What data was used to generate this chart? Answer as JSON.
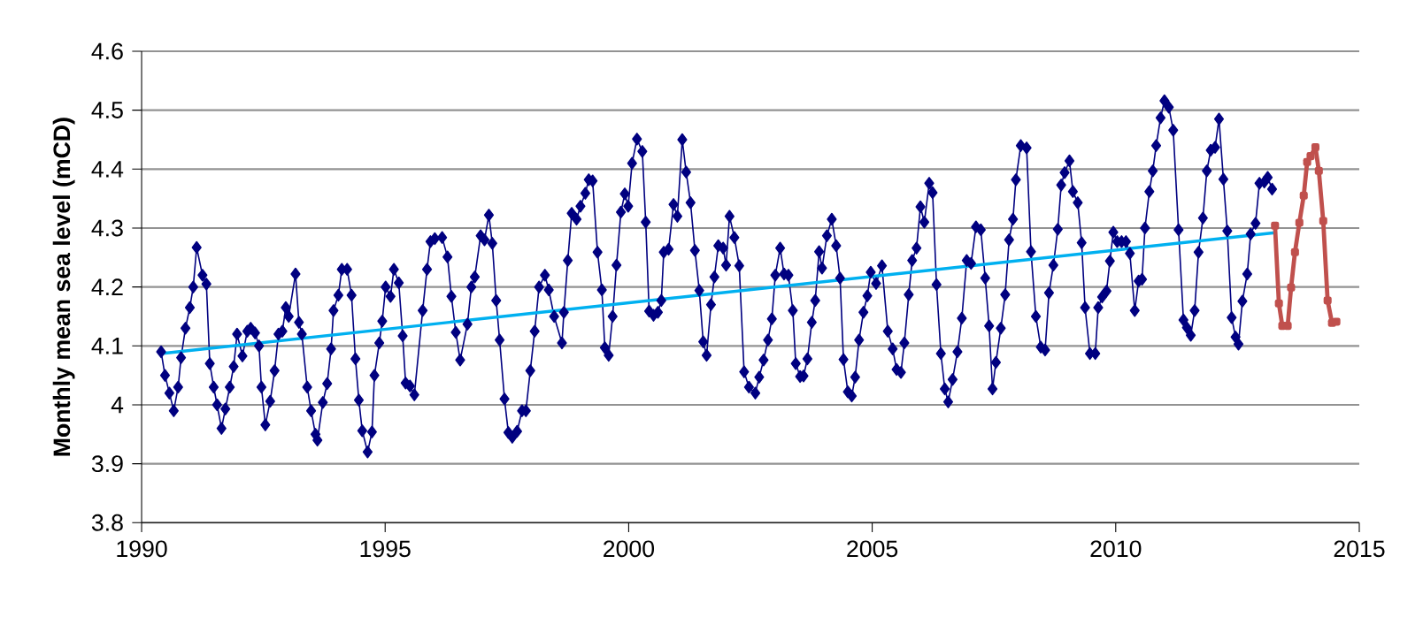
{
  "chart_data": {
    "type": "line",
    "ylabel": "Monthly mean sea level (mCD)",
    "xlim": [
      1990,
      2015
    ],
    "xticks": [
      1990,
      1995,
      2000,
      2005,
      2010,
      2015
    ],
    "ylim": [
      3.8,
      4.6
    ],
    "yticks": [
      3.8,
      3.9,
      4,
      4.1,
      4.2,
      4.3,
      4.4,
      4.5,
      4.6
    ],
    "grid": "y",
    "series": [
      {
        "color": "#000080",
        "marker": "diamond",
        "x": [
          1990.4,
          1990.48,
          1990.57,
          1990.66,
          1990.75,
          1990.81,
          1990.9,
          1990.99,
          1991.06,
          1991.13,
          1991.25,
          1991.33,
          1991.4,
          1991.48,
          1991.55,
          1991.64,
          1991.72,
          1991.81,
          1991.89,
          1991.96,
          1992.07,
          1992.17,
          1992.24,
          1992.33,
          1992.41,
          1992.46,
          1992.54,
          1992.64,
          1992.73,
          1992.81,
          1992.89,
          1992.96,
          1993.02,
          1993.16,
          1993.23,
          1993.29,
          1993.4,
          1993.48,
          1993.57,
          1993.61,
          1993.72,
          1993.81,
          1993.89,
          1993.94,
          1994.04,
          1994.11,
          1994.22,
          1994.31,
          1994.39,
          1994.46,
          1994.53,
          1994.64,
          1994.73,
          1994.78,
          1994.88,
          1994.94,
          1995.01,
          1995.11,
          1995.18,
          1995.28,
          1995.36,
          1995.42,
          1995.51,
          1995.6,
          1995.77,
          1995.86,
          1995.93,
          1996.02,
          1996.17,
          1996.28,
          1996.36,
          1996.45,
          1996.54,
          1996.69,
          1996.77,
          1996.84,
          1996.96,
          1997.04,
          1997.13,
          1997.2,
          1997.28,
          1997.35,
          1997.45,
          1997.53,
          1997.61,
          1997.71,
          1997.81,
          1997.89,
          1997.98,
          1998.07,
          1998.16,
          1998.28,
          1998.36,
          1998.47,
          1998.63,
          1998.67,
          1998.75,
          1998.83,
          1998.93,
          1999.01,
          1999.11,
          1999.18,
          1999.26,
          1999.36,
          1999.45,
          1999.51,
          1999.59,
          1999.67,
          1999.75,
          1999.84,
          1999.92,
          1999.99,
          2000.07,
          2000.17,
          2000.28,
          2000.35,
          2000.42,
          2000.51,
          2000.6,
          2000.67,
          2000.72,
          2000.82,
          2000.92,
          2001.0,
          2001.1,
          2001.18,
          2001.27,
          2001.36,
          2001.45,
          2001.53,
          2001.6,
          2001.69,
          2001.76,
          2001.84,
          2001.94,
          2002.0,
          2002.07,
          2002.17,
          2002.27,
          2002.37,
          2002.47,
          2002.6,
          2002.68,
          2002.77,
          2002.86,
          2002.94,
          2003.01,
          2003.11,
          2003.19,
          2003.28,
          2003.37,
          2003.43,
          2003.52,
          2003.59,
          2003.67,
          2003.76,
          2003.83,
          2003.91,
          2003.97,
          2004.07,
          2004.17,
          2004.26,
          2004.34,
          2004.41,
          2004.5,
          2004.58,
          2004.65,
          2004.73,
          2004.82,
          2004.9,
          2004.97,
          2005.08,
          2005.2,
          2005.32,
          2005.42,
          2005.5,
          2005.59,
          2005.66,
          2005.75,
          2005.82,
          2005.91,
          2005.99,
          2006.07,
          2006.17,
          2006.24,
          2006.32,
          2006.41,
          2006.49,
          2006.56,
          2006.65,
          2006.75,
          2006.84,
          2006.94,
          2007.03,
          2007.13,
          2007.23,
          2007.32,
          2007.4,
          2007.47,
          2007.54,
          2007.64,
          2007.73,
          2007.81,
          2007.89,
          2007.95,
          2008.05,
          2008.17,
          2008.26,
          2008.36,
          2008.46,
          2008.55,
          2008.63,
          2008.72,
          2008.81,
          2008.88,
          2008.95,
          2009.05,
          2009.12,
          2009.22,
          2009.3,
          2009.37,
          2009.47,
          2009.58,
          2009.64,
          2009.72,
          2009.81,
          2009.88,
          2009.95,
          2010.03,
          2010.12,
          2010.21,
          2010.29,
          2010.39,
          2010.47,
          2010.54,
          2010.6,
          2010.69,
          2010.76,
          2010.83,
          2010.92,
          2011.0,
          2011.09,
          2011.18,
          2011.29,
          2011.39,
          2011.46,
          2011.54,
          2011.62,
          2011.7,
          2011.79,
          2011.87,
          2011.95,
          2012.04,
          2012.12,
          2012.21,
          2012.29,
          2012.38,
          2012.46,
          2012.52,
          2012.6,
          2012.7,
          2012.77,
          2012.87,
          2012.95,
          2013.05,
          2013.12,
          2013.21
        ],
        "values": [
          4.09,
          4.05,
          4.02,
          3.99,
          4.03,
          4.08,
          4.13,
          4.165,
          4.2,
          4.267,
          4.22,
          4.205,
          4.07,
          4.03,
          4.0,
          3.96,
          3.993,
          4.03,
          4.065,
          4.12,
          4.083,
          4.125,
          4.13,
          4.122,
          4.1,
          4.03,
          3.966,
          4.006,
          4.058,
          4.12,
          4.125,
          4.165,
          4.15,
          4.222,
          4.14,
          4.12,
          4.03,
          3.99,
          3.95,
          3.94,
          4.004,
          4.036,
          4.095,
          4.16,
          4.186,
          4.23,
          4.23,
          4.186,
          4.078,
          4.008,
          3.956,
          3.92,
          3.954,
          4.05,
          4.105,
          4.142,
          4.2,
          4.184,
          4.23,
          4.207,
          4.117,
          4.037,
          4.032,
          4.017,
          4.16,
          4.23,
          4.277,
          4.282,
          4.284,
          4.251,
          4.184,
          4.123,
          4.076,
          4.137,
          4.2,
          4.217,
          4.287,
          4.28,
          4.322,
          4.274,
          4.177,
          4.11,
          4.01,
          3.953,
          3.945,
          3.955,
          3.99,
          3.99,
          4.058,
          4.125,
          4.2,
          4.22,
          4.195,
          4.15,
          4.105,
          4.157,
          4.245,
          4.325,
          4.315,
          4.337,
          4.359,
          4.382,
          4.38,
          4.259,
          4.195,
          4.097,
          4.084,
          4.15,
          4.237,
          4.327,
          4.358,
          4.337,
          4.41,
          4.451,
          4.43,
          4.31,
          4.159,
          4.152,
          4.157,
          4.177,
          4.259,
          4.264,
          4.34,
          4.32,
          4.45,
          4.395,
          4.343,
          4.262,
          4.194,
          4.107,
          4.084,
          4.17,
          4.217,
          4.27,
          4.266,
          4.237,
          4.32,
          4.284,
          4.236,
          4.056,
          4.03,
          4.02,
          4.047,
          4.076,
          4.11,
          4.146,
          4.22,
          4.266,
          4.222,
          4.22,
          4.16,
          4.07,
          4.048,
          4.049,
          4.078,
          4.14,
          4.177,
          4.26,
          4.232,
          4.287,
          4.315,
          4.27,
          4.215,
          4.077,
          4.022,
          4.015,
          4.047,
          4.11,
          4.157,
          4.185,
          4.225,
          4.206,
          4.236,
          4.125,
          4.095,
          4.06,
          4.055,
          4.105,
          4.187,
          4.245,
          4.266,
          4.336,
          4.31,
          4.376,
          4.36,
          4.204,
          4.087,
          4.027,
          4.005,
          4.043,
          4.09,
          4.147,
          4.245,
          4.24,
          4.302,
          4.297,
          4.215,
          4.134,
          4.027,
          4.072,
          4.13,
          4.187,
          4.28,
          4.315,
          4.382,
          4.44,
          4.436,
          4.26,
          4.15,
          4.098,
          4.093,
          4.19,
          4.237,
          4.298,
          4.373,
          4.394,
          4.414,
          4.362,
          4.343,
          4.275,
          4.165,
          4.087,
          4.087,
          4.165,
          4.183,
          4.193,
          4.244,
          4.293,
          4.277,
          4.277,
          4.277,
          4.257,
          4.16,
          4.21,
          4.213,
          4.3,
          4.362,
          4.397,
          4.44,
          4.487,
          4.516,
          4.505,
          4.466,
          4.297,
          4.144,
          4.131,
          4.118,
          4.16,
          4.259,
          4.317,
          4.397,
          4.432,
          4.437,
          4.485,
          4.383,
          4.295,
          4.148,
          4.115,
          4.103,
          4.176,
          4.222,
          4.29,
          4.308,
          4.376,
          4.378,
          4.386,
          4.366
        ]
      },
      {
        "color": "#00b0f0",
        "marker": "none",
        "x": [
          1990.4,
          2013.27
        ],
        "values": [
          4.087,
          4.292
        ]
      },
      {
        "color": "#c0504d",
        "marker": "square",
        "x": [
          2013.27,
          2013.35,
          2013.42,
          2013.53,
          2013.6,
          2013.68,
          2013.77,
          2013.86,
          2013.93,
          2014.0,
          2014.1,
          2014.17,
          2014.26,
          2014.35,
          2014.44,
          2014.53
        ],
        "values": [
          4.304,
          4.172,
          4.134,
          4.134,
          4.199,
          4.259,
          4.309,
          4.355,
          4.412,
          4.422,
          4.437,
          4.397,
          4.312,
          4.177,
          4.139,
          4.141
        ]
      }
    ]
  }
}
